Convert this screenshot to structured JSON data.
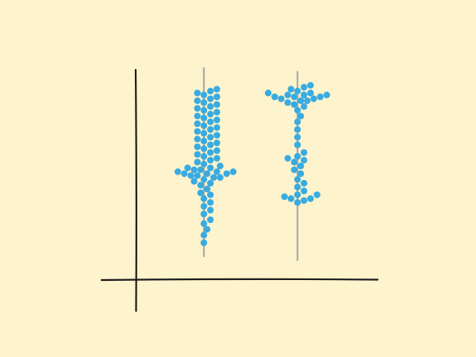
{
  "colors": {
    "background": "#fdf3cc",
    "point": "#3aabe0",
    "range_line": "#aaaaaa",
    "axis": "#1c1c1c"
  },
  "chart_data": {
    "type": "scatter",
    "subtype": "beeswarm",
    "title": "",
    "xlabel": "",
    "ylabel": "",
    "ylim": [
      0,
      10
    ],
    "axis_ticks": "none",
    "grid": false,
    "legend": "none",
    "series": [
      {
        "range": [
          1.2,
          11.0
        ],
        "values": [
          1.9,
          2.3,
          2.6,
          2.9,
          3.1,
          3.4,
          3.6,
          3.8,
          4.0,
          4.2,
          4.4,
          4.5,
          4.7,
          4.9,
          5.0,
          5.1,
          5.2,
          5.3,
          5.3,
          5.4,
          5.4,
          5.5,
          5.5,
          5.5,
          5.6,
          5.6,
          5.6,
          5.7,
          5.7,
          5.8,
          5.8,
          5.9,
          6.0,
          6.1,
          6.2,
          6.3,
          6.4,
          6.5,
          6.6,
          6.7,
          6.8,
          6.9,
          7.0,
          7.1,
          7.2,
          7.3,
          7.4,
          7.5,
          7.6,
          7.7,
          7.8,
          7.9,
          8.0,
          8.1,
          8.2,
          8.3,
          8.4,
          8.5,
          8.6,
          8.7,
          8.8,
          8.9,
          9.0,
          9.1,
          9.2,
          9.3,
          9.4,
          9.5,
          9.6,
          9.7,
          9.8,
          9.9
        ]
      },
      {
        "range": [
          1.0,
          10.8
        ],
        "values": [
          4.0,
          4.1,
          4.2,
          4.2,
          4.3,
          4.4,
          4.4,
          4.6,
          4.8,
          5.0,
          5.2,
          5.5,
          5.7,
          5.9,
          6.1,
          6.2,
          6.3,
          6.4,
          6.6,
          7.0,
          7.4,
          7.8,
          8.2,
          8.5,
          8.8,
          9.0,
          9.1,
          9.2,
          9.3,
          9.3,
          9.4,
          9.4,
          9.5,
          9.5,
          9.5,
          9.6,
          9.6,
          9.6,
          9.7,
          9.7,
          9.8,
          9.9,
          10.0,
          10.1
        ]
      }
    ]
  }
}
